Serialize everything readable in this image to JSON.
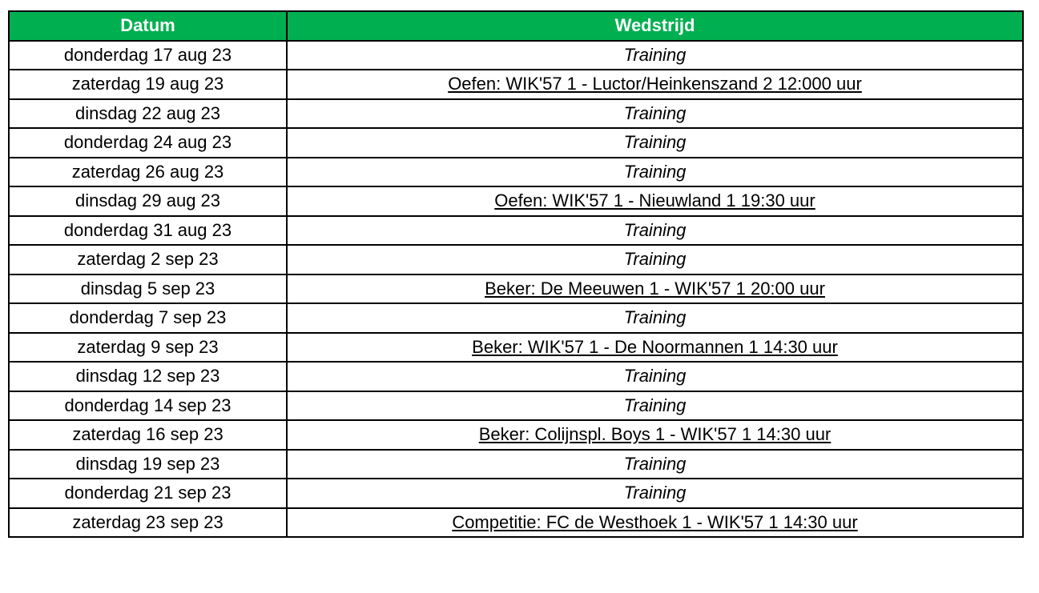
{
  "header": {
    "date": "Datum",
    "match": "Wedstrijd"
  },
  "header_color": "#00b050",
  "rows": [
    {
      "date": "donderdag 17 aug 23",
      "match": "Training",
      "type": "training"
    },
    {
      "date": "zaterdag 19 aug 23",
      "match": "Oefen: WIK'57 1 - Luctor/Heinkenszand 2 12:000 uur",
      "type": "match"
    },
    {
      "date": "dinsdag 22 aug 23",
      "match": "Training",
      "type": "training"
    },
    {
      "date": "donderdag 24 aug 23",
      "match": "Training",
      "type": "training"
    },
    {
      "date": "zaterdag 26 aug 23",
      "match": "Training",
      "type": "training"
    },
    {
      "date": "dinsdag 29 aug 23",
      "match": "Oefen: WIK'57 1 - Nieuwland 1 19:30 uur",
      "type": "match"
    },
    {
      "date": "donderdag 31 aug 23",
      "match": "Training",
      "type": "training"
    },
    {
      "date": "zaterdag 2 sep 23",
      "match": "Training",
      "type": "training"
    },
    {
      "date": "dinsdag 5 sep 23",
      "match": "Beker: De Meeuwen 1 - WIK'57 1 20:00 uur",
      "type": "match"
    },
    {
      "date": "donderdag 7 sep 23",
      "match": "Training",
      "type": "training"
    },
    {
      "date": "zaterdag 9 sep 23",
      "match": "Beker: WIK'57 1 - De Noormannen 1 14:30 uur",
      "type": "match"
    },
    {
      "date": "dinsdag 12 sep 23",
      "match": "Training",
      "type": "training"
    },
    {
      "date": "donderdag 14 sep 23",
      "match": "Training",
      "type": "training"
    },
    {
      "date": "zaterdag 16 sep 23",
      "match": "Beker: Colijnspl. Boys 1 - WIK'57 1 14:30 uur",
      "type": "match"
    },
    {
      "date": "dinsdag 19 sep 23",
      "match": "Training",
      "type": "training"
    },
    {
      "date": "donderdag 21 sep 23",
      "match": "Training",
      "type": "training"
    },
    {
      "date": "zaterdag 23 sep 23",
      "match": "Competitie: FC de Westhoek 1 - WIK'57 1 14:30 uur",
      "type": "match"
    }
  ]
}
